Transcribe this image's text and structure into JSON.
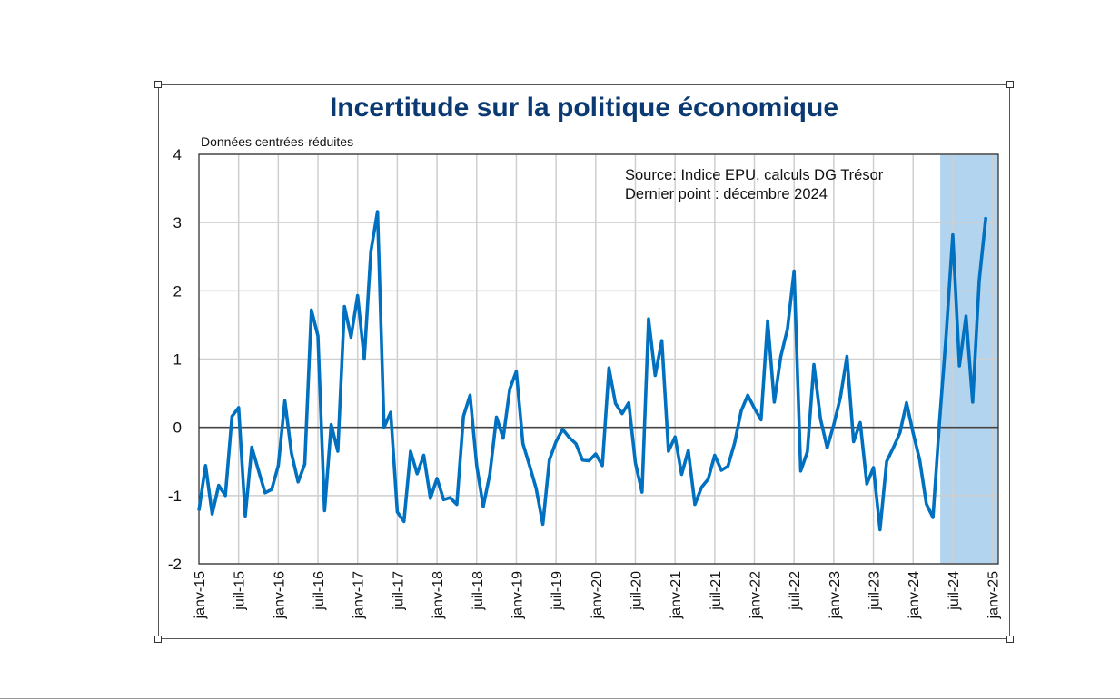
{
  "chart_data": {
    "type": "line",
    "title": "Incertitude sur la politique économique",
    "subtitle": "Données centrées-réduites",
    "annotations": [
      "Source: Indice EPU, calculs DG Trésor",
      "Dernier point : décembre 2024"
    ],
    "xlabel": "",
    "ylabel": "",
    "ylim": [
      -2,
      4
    ],
    "yticks": [
      -2,
      -1,
      0,
      1,
      2,
      3,
      4
    ],
    "x_start": "janv-15",
    "x_frequency": "monthly",
    "xtick_labels": [
      "janv-15",
      "juil-15",
      "janv-16",
      "juil-16",
      "janv-17",
      "juil-17",
      "janv-18",
      "juil-18",
      "janv-19",
      "juil-19",
      "janv-20",
      "juil-20",
      "janv-21",
      "juil-21",
      "janv-22",
      "juil-22",
      "janv-23",
      "juil-23",
      "janv-24",
      "juil-24",
      "janv-25"
    ],
    "grid": true,
    "shaded_period": {
      "from": "mai-24",
      "to": "janv-25",
      "color": "#b3d4ee"
    },
    "series": [
      {
        "color": "#0070c0",
        "values": [
          -1.22,
          -0.56,
          -1.27,
          -0.85,
          -1.0,
          0.16,
          0.29,
          -1.3,
          -0.29,
          -0.63,
          -0.96,
          -0.91,
          -0.56,
          0.39,
          -0.38,
          -0.8,
          -0.54,
          1.72,
          1.34,
          -1.22,
          0.04,
          -0.35,
          1.77,
          1.32,
          1.93,
          1.0,
          2.58,
          3.16,
          0.0,
          0.22,
          -1.24,
          -1.38,
          -0.35,
          -0.68,
          -0.41,
          -1.04,
          -0.75,
          -1.06,
          -1.03,
          -1.13,
          0.16,
          0.47,
          -0.56,
          -1.16,
          -0.68,
          0.15,
          -0.16,
          0.56,
          0.82,
          -0.24,
          -0.56,
          -0.9,
          -1.42,
          -0.48,
          -0.21,
          -0.03,
          -0.15,
          -0.24,
          -0.48,
          -0.49,
          -0.39,
          -0.56,
          0.87,
          0.35,
          0.2,
          0.36,
          -0.52,
          -0.95,
          1.59,
          0.76,
          1.27,
          -0.35,
          -0.14,
          -0.69,
          -0.34,
          -1.13,
          -0.88,
          -0.76,
          -0.41,
          -0.63,
          -0.57,
          -0.23,
          0.24,
          0.47,
          0.28,
          0.11,
          1.56,
          0.37,
          1.04,
          1.44,
          2.29,
          -0.64,
          -0.36,
          0.92,
          0.12,
          -0.3,
          0.04,
          0.44,
          1.04,
          -0.21,
          0.07,
          -0.83,
          -0.59,
          -1.5,
          -0.5,
          -0.3,
          -0.08,
          0.36,
          -0.08,
          -0.48,
          -1.12,
          -1.32,
          0.1,
          1.35,
          2.82,
          0.9,
          1.63,
          0.37,
          2.15,
          3.08
        ]
      }
    ]
  }
}
